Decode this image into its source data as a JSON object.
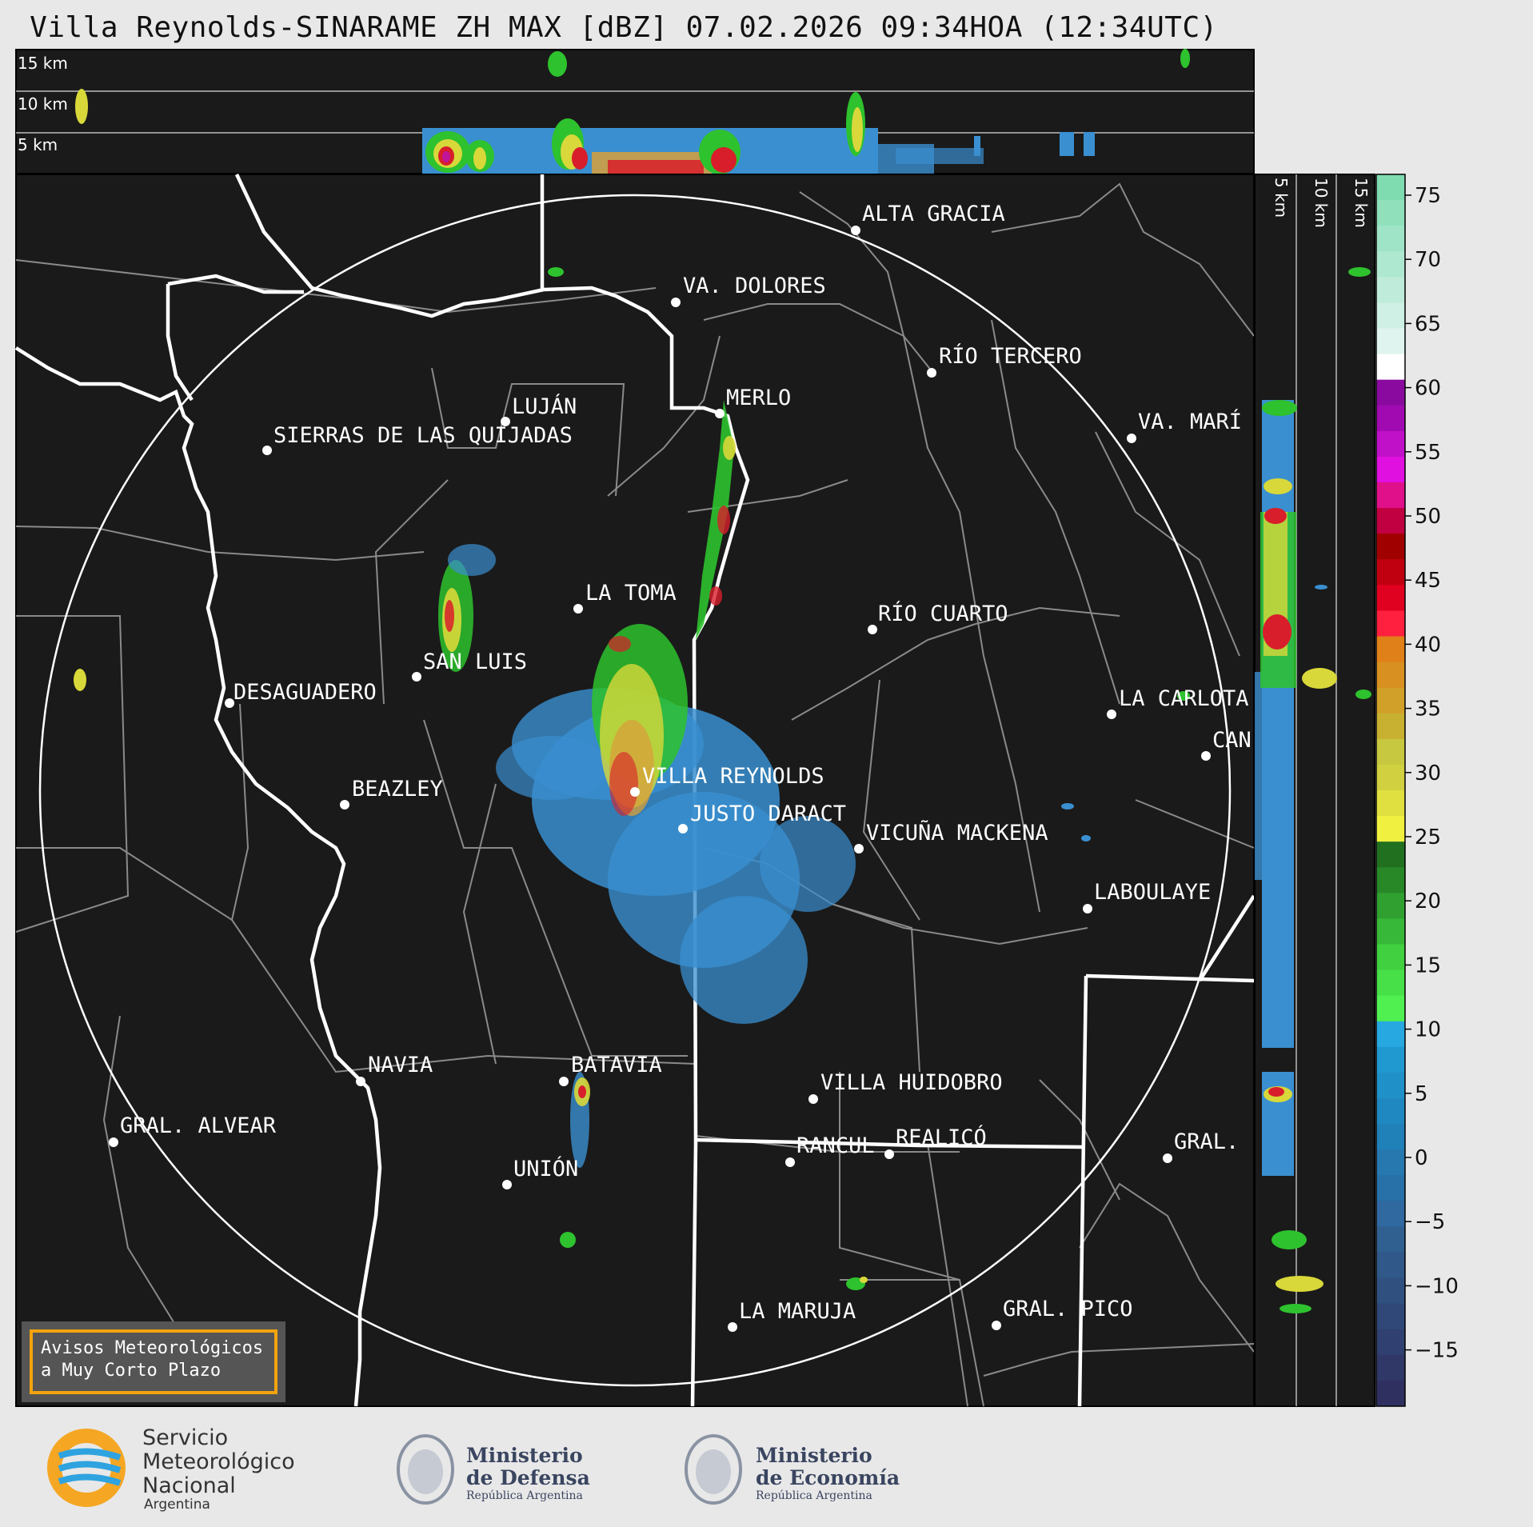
{
  "title": "Villa Reynolds-SINARAME ZH MAX [dBZ] 07.02.2026 09:34HOA (12:34UTC)",
  "top_panel_labels": [
    "15 km",
    "10 km",
    "5 km"
  ],
  "side_panel_labels": [
    "5 km",
    "10 km",
    "15 km"
  ],
  "colorbar": {
    "ticks": [
      "75",
      "70",
      "65",
      "60",
      "55",
      "50",
      "45",
      "40",
      "35",
      "30",
      "25",
      "20",
      "15",
      "10",
      "5",
      "0",
      "−5",
      "−10",
      "−15"
    ]
  },
  "cities": [
    {
      "name": "ALTA GRACIA"
    },
    {
      "name": "VA. DOLORES"
    },
    {
      "name": "RÍO TERCERO"
    },
    {
      "name": "MERLO"
    },
    {
      "name": "LUJÁN"
    },
    {
      "name": "SIERRAS DE LAS QUIJADAS"
    },
    {
      "name": "VA. MARÍ"
    },
    {
      "name": "LA TOMA"
    },
    {
      "name": "RÍO CUARTO"
    },
    {
      "name": "SAN LUIS"
    },
    {
      "name": "DESAGUADERO"
    },
    {
      "name": "LA CARLOTA"
    },
    {
      "name": "CAN"
    },
    {
      "name": "VILLA REYNOLDS"
    },
    {
      "name": "BEAZLEY"
    },
    {
      "name": "JUSTO DARACT"
    },
    {
      "name": "VICUÑA MACKENA"
    },
    {
      "name": "LABOULAYE"
    },
    {
      "name": "NAVIA"
    },
    {
      "name": "BATAVIA"
    },
    {
      "name": "VILLA HUIDOBRO"
    },
    {
      "name": "GRAL. ALVEAR"
    },
    {
      "name": "RANCUL"
    },
    {
      "name": "REALICÓ"
    },
    {
      "name": "GRAL."
    },
    {
      "name": "UNIÓN"
    },
    {
      "name": "LA MARUJA"
    },
    {
      "name": "GRAL. PICO"
    }
  ],
  "warning": {
    "line1": "Avisos Meteorológicos",
    "line2": "a Muy Corto Plazo"
  },
  "logos": {
    "smn": {
      "line1": "Servicio",
      "line2": "Meteorológico",
      "line3": "Nacional",
      "line4": "Argentina"
    },
    "defensa": {
      "line1": "Ministerio",
      "line2": "de Defensa",
      "line3": "República Argentina"
    },
    "economia": {
      "line1": "Ministerio",
      "line2": "de Economía",
      "line3": "República Argentina"
    }
  },
  "colors": {
    "panel_bg": "#1a1a1a",
    "light_blue": "#3a8fd0",
    "green": "#2ec22e",
    "yellow": "#d8d83a",
    "red": "#d81e2a"
  }
}
